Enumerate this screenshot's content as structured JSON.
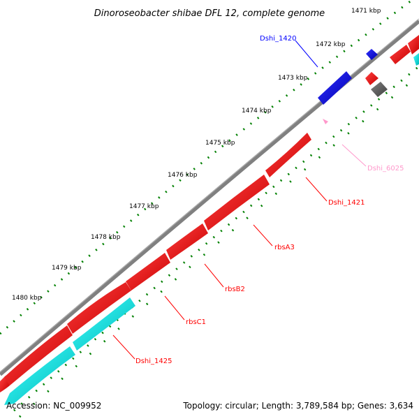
{
  "title": "Dinoroseobacter shibae DFL 12, complete genome",
  "footer": {
    "accession": "Accession: NC_009952",
    "info": "Topology: circular; Length: 3,789,584 bp; Genes: 3,634"
  },
  "colors": {
    "backbone": "#808080",
    "forward_gene": "#ff0000",
    "reverse_gene": "#00ffff",
    "highlight_gene": "#0000ff",
    "other_feature": "#606060",
    "small_feature": "#ff99cc",
    "tick": "#008000"
  },
  "scale_labels": [
    "1471 kbp",
    "1472 kbp",
    "1473 kbp",
    "1474 kbp",
    "1475 kbp",
    "1476 kbp",
    "1477 kbp",
    "1478 kbp",
    "1479 kbp",
    "1480 kbp"
  ],
  "genes": [
    {
      "name": "Dshi_1420",
      "color": "#0000ff"
    },
    {
      "name": "Dshi_6025",
      "color": "#ff99cc"
    },
    {
      "name": "Dshi_1421",
      "color": "#ff0000"
    },
    {
      "name": "rbsA3",
      "color": "#ff0000"
    },
    {
      "name": "rbsB2",
      "color": "#ff0000"
    },
    {
      "name": "rbsC1",
      "color": "#ff0000"
    },
    {
      "name": "Dshi_1425",
      "color": "#ff0000"
    }
  ]
}
